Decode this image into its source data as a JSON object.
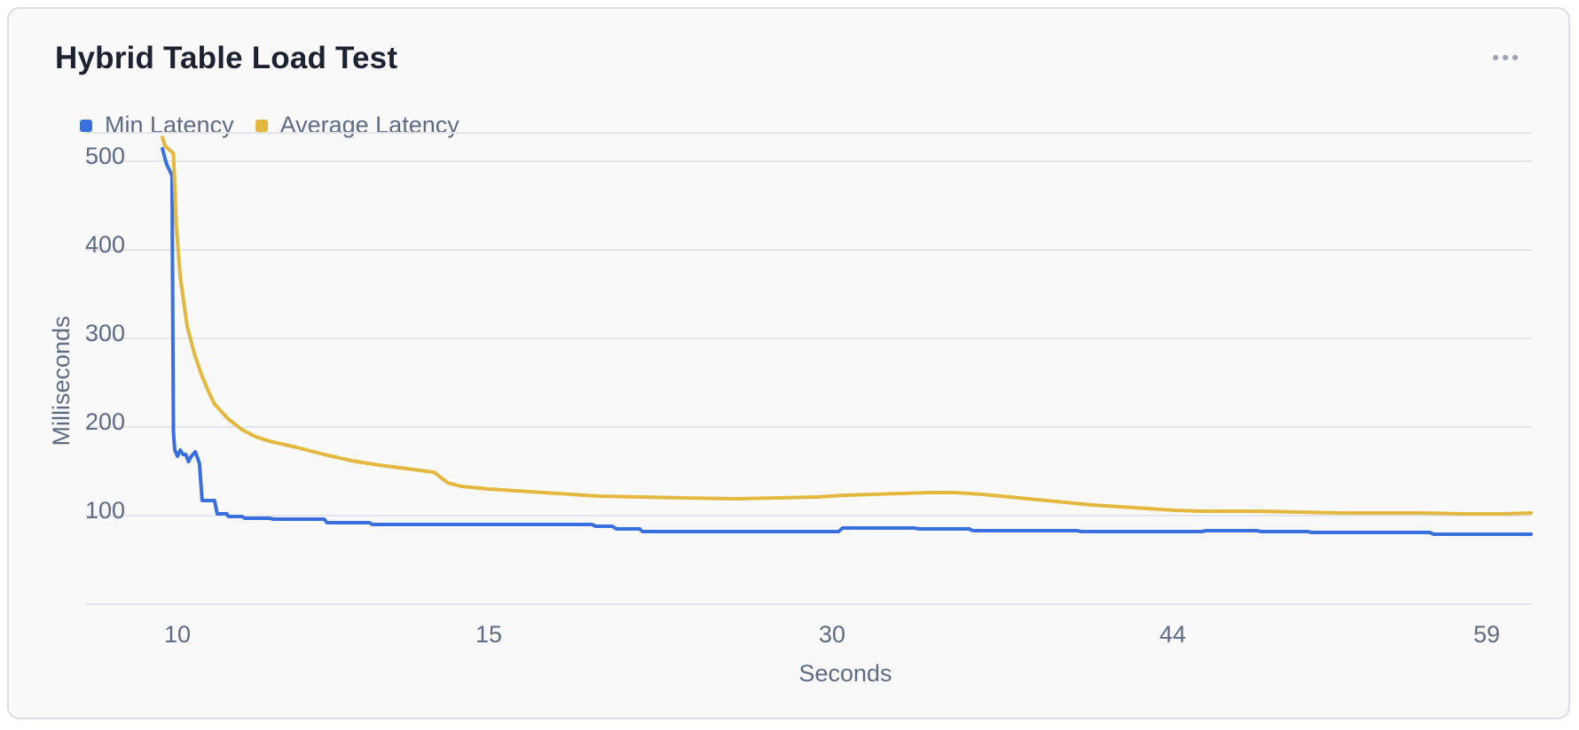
{
  "card": {
    "title": "Hybrid Table Load Test",
    "menu_icon": "more-horizontal-icon"
  },
  "legend": [
    {
      "label": "Min Latency",
      "color": "#3a6fde"
    },
    {
      "label": "Average Latency",
      "color": "#e4b83e"
    }
  ],
  "chart_data": {
    "type": "line",
    "title": "Hybrid Table Load Test",
    "xlabel": "Seconds",
    "ylabel": "Milliseconds",
    "x_tick_labels": [
      "10",
      "15",
      "30",
      "44",
      "59"
    ],
    "y_ticks": [
      100,
      200,
      300,
      400,
      500
    ],
    "ylim": [
      0,
      533
    ],
    "xlim": [
      0,
      100
    ],
    "grid": true,
    "legend_position": "top-left",
    "series": [
      {
        "name": "Min Latency",
        "color": "#3a6fde",
        "points": [
          [
            0.2,
            515
          ],
          [
            0.5,
            498
          ],
          [
            0.9,
            485
          ],
          [
            1.0,
            195
          ],
          [
            1.1,
            175
          ],
          [
            1.3,
            168
          ],
          [
            1.5,
            175
          ],
          [
            1.7,
            170
          ],
          [
            1.9,
            170
          ],
          [
            2.1,
            162
          ],
          [
            2.3,
            168
          ],
          [
            2.6,
            173
          ],
          [
            2.9,
            160
          ],
          [
            3.1,
            118
          ],
          [
            3.3,
            118
          ],
          [
            4.0,
            118
          ],
          [
            4.2,
            103
          ],
          [
            4.9,
            103
          ],
          [
            5.0,
            100
          ],
          [
            6.0,
            100
          ],
          [
            6.2,
            98
          ],
          [
            8.0,
            98
          ],
          [
            8.3,
            97
          ],
          [
            10.0,
            97
          ],
          [
            12.0,
            97
          ],
          [
            12.2,
            93
          ],
          [
            15.3,
            93
          ],
          [
            15.5,
            91
          ],
          [
            18.0,
            91
          ],
          [
            20.0,
            91
          ],
          [
            22.0,
            91
          ],
          [
            25.0,
            91
          ],
          [
            27.0,
            91
          ],
          [
            30.0,
            91
          ],
          [
            31.5,
            91
          ],
          [
            31.8,
            89
          ],
          [
            33.0,
            89
          ],
          [
            33.3,
            86
          ],
          [
            35.0,
            86
          ],
          [
            35.2,
            83
          ],
          [
            40.0,
            83
          ],
          [
            43.0,
            83
          ],
          [
            48.0,
            83
          ],
          [
            49.5,
            83
          ],
          [
            49.8,
            87
          ],
          [
            52.0,
            87
          ],
          [
            55.0,
            87
          ],
          [
            55.4,
            86
          ],
          [
            59.0,
            86
          ],
          [
            59.3,
            84
          ],
          [
            62.0,
            84
          ],
          [
            65.0,
            84
          ],
          [
            66.9,
            84
          ],
          [
            67.2,
            83
          ],
          [
            70.0,
            83
          ],
          [
            76.0,
            83
          ],
          [
            76.3,
            84
          ],
          [
            79.0,
            84
          ],
          [
            80.0,
            84
          ],
          [
            80.3,
            83
          ],
          [
            83.0,
            83
          ],
          [
            83.7,
            83
          ],
          [
            84.0,
            82
          ],
          [
            90.0,
            82
          ],
          [
            92.6,
            82
          ],
          [
            92.9,
            80
          ],
          [
            95.0,
            80
          ],
          [
            100,
            80
          ]
        ]
      },
      {
        "name": "Average Latency",
        "color": "#e4b83e",
        "points": [
          [
            0.2,
            528
          ],
          [
            0.4,
            518
          ],
          [
            1.0,
            510
          ],
          [
            1.2,
            430
          ],
          [
            1.5,
            370
          ],
          [
            2.0,
            315
          ],
          [
            2.5,
            285
          ],
          [
            3.0,
            262
          ],
          [
            3.5,
            243
          ],
          [
            4.0,
            227
          ],
          [
            5.0,
            210
          ],
          [
            6.0,
            198
          ],
          [
            7.0,
            190
          ],
          [
            8.0,
            185
          ],
          [
            10.0,
            178
          ],
          [
            12.0,
            170
          ],
          [
            14.0,
            163
          ],
          [
            16.0,
            158
          ],
          [
            18.0,
            154
          ],
          [
            20.0,
            150
          ],
          [
            21.0,
            138
          ],
          [
            22.0,
            134
          ],
          [
            24.0,
            131
          ],
          [
            26.0,
            129
          ],
          [
            28.0,
            127
          ],
          [
            30.0,
            125
          ],
          [
            32.0,
            123
          ],
          [
            35.0,
            122
          ],
          [
            38.0,
            121
          ],
          [
            42.0,
            120
          ],
          [
            45.0,
            121
          ],
          [
            48.0,
            122
          ],
          [
            50.0,
            124
          ],
          [
            52.0,
            125
          ],
          [
            54.0,
            126
          ],
          [
            56.0,
            127
          ],
          [
            58.0,
            127
          ],
          [
            60.0,
            125
          ],
          [
            62.0,
            122
          ],
          [
            64.0,
            119
          ],
          [
            66.0,
            116
          ],
          [
            68.0,
            113
          ],
          [
            70.0,
            111
          ],
          [
            72.0,
            109
          ],
          [
            74.0,
            107
          ],
          [
            76.0,
            106
          ],
          [
            78.0,
            106
          ],
          [
            80.0,
            106
          ],
          [
            83.0,
            105
          ],
          [
            86.0,
            104
          ],
          [
            89.0,
            104
          ],
          [
            92.0,
            104
          ],
          [
            95.0,
            103
          ],
          [
            98.0,
            103
          ],
          [
            100,
            104
          ]
        ]
      }
    ]
  }
}
